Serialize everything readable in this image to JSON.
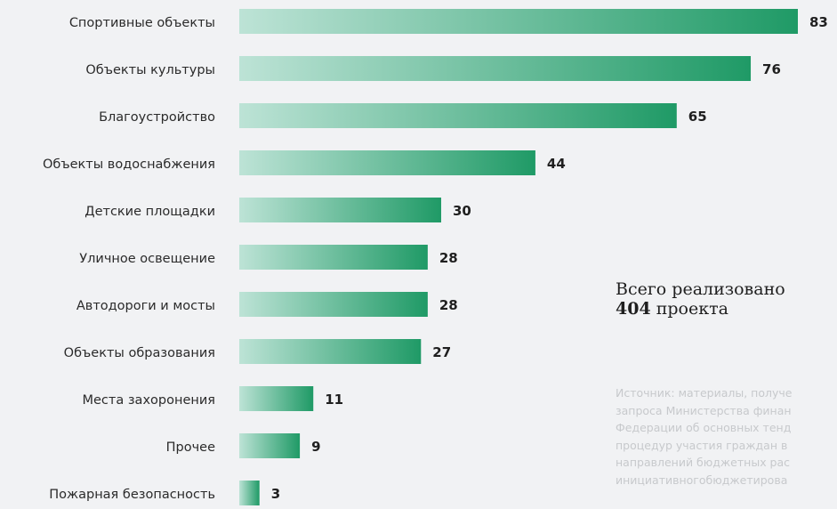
{
  "chart_data": {
    "type": "bar",
    "orientation": "horizontal",
    "categories": [
      "Спортивные объекты",
      "Объекты культуры",
      "Благоустройство",
      "Объекты водоснабжения",
      "Детские площадки",
      "Уличное освещение",
      "Автодороги и мосты",
      "Объекты образования",
      "Места захоронения",
      "Прочее",
      "Пожарная безопасность"
    ],
    "values": [
      83,
      76,
      65,
      44,
      30,
      28,
      28,
      27,
      11,
      9,
      3
    ],
    "data_labels": [
      "83",
      "76",
      "65",
      "44",
      "30",
      "28",
      "28",
      "27",
      "11",
      "9",
      "3"
    ],
    "xlim": [
      0,
      83
    ],
    "grid": false,
    "legend": "none",
    "colors": {
      "gradient_start": "#bde3d6",
      "gradient_end": "#1f9a66"
    }
  },
  "summary": {
    "line1": "Всего реализовано",
    "total_number": "404",
    "total_suffix": " проекта"
  },
  "source_note": {
    "lines": [
      "Источник: материалы, получе",
      "запроса Министерства финан",
      "Федерации об основных тенд",
      "процедур участия граждан в",
      "направлений бюджетных рас",
      "инициативногобюджетирова"
    ]
  }
}
